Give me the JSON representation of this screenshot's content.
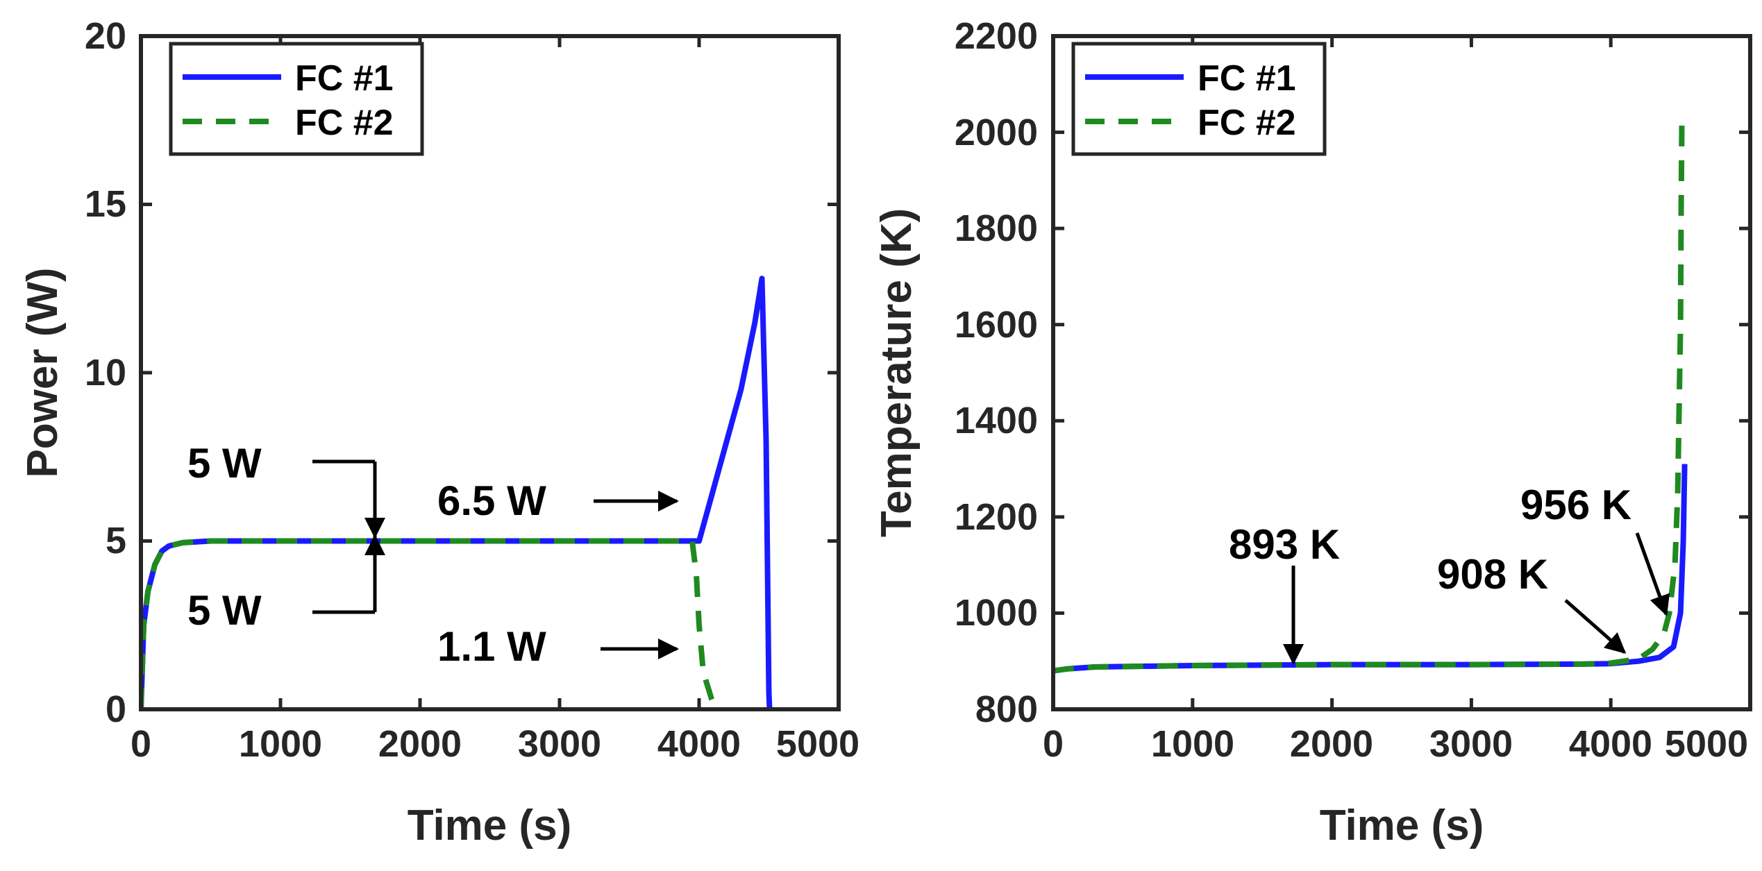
{
  "chart_data": [
    {
      "type": "line",
      "xlabel": "Time (s)",
      "ylabel": "Power (W)",
      "xlim": [
        0,
        5000
      ],
      "ylim": [
        0,
        20
      ],
      "xticks": [
        "0",
        "1000",
        "2000",
        "3000",
        "4000",
        "5000"
      ],
      "yticks": [
        "0",
        "5",
        "10",
        "15",
        "20"
      ],
      "legend": {
        "placement": "top-left",
        "entries": [
          "FC #1",
          "FC #2"
        ]
      },
      "series": [
        {
          "name": "FC #1",
          "color": "#1a1aff",
          "style": "solid",
          "x": [
            0,
            20,
            50,
            100,
            150,
            200,
            300,
            500,
            1000,
            2000,
            3000,
            3950,
            4000,
            4100,
            4200,
            4300,
            4400,
            4450,
            4480,
            4500,
            4505
          ],
          "y": [
            0,
            2.5,
            3.5,
            4.3,
            4.7,
            4.85,
            4.95,
            5.0,
            5.0,
            5.0,
            5.0,
            5.0,
            5.0,
            6.5,
            8.0,
            9.5,
            11.5,
            12.8,
            8.0,
            0.5,
            0
          ]
        },
        {
          "name": "FC #2",
          "color": "#1f8a1f",
          "style": "dashed",
          "x": [
            0,
            20,
            50,
            100,
            150,
            200,
            300,
            500,
            1000,
            2000,
            3000,
            3950,
            3980,
            4000,
            4030,
            4060,
            4090,
            4110
          ],
          "y": [
            0,
            2.5,
            3.5,
            4.3,
            4.7,
            4.85,
            4.95,
            5.0,
            5.0,
            5.0,
            5.0,
            5.0,
            4.0,
            2.5,
            1.1,
            0.7,
            0.3,
            0.1
          ]
        }
      ],
      "annotations": [
        {
          "text": "5 W",
          "x": 1700,
          "y": 5
        },
        {
          "text": "5 W",
          "x": 1700,
          "y": 5
        },
        {
          "text": "6.5 W",
          "x": 4000,
          "y": 6.5
        },
        {
          "text": "1.1 W",
          "x": 4000,
          "y": 1.1
        }
      ]
    },
    {
      "type": "line",
      "xlabel": "Time (s)",
      "ylabel": "Temperature (K)",
      "xlim": [
        0,
        5000
      ],
      "ylim": [
        800,
        2200
      ],
      "xticks": [
        "0",
        "1000",
        "2000",
        "3000",
        "4000",
        "5000"
      ],
      "yticks": [
        "800",
        "1000",
        "1200",
        "1400",
        "1600",
        "1800",
        "2000",
        "2200"
      ],
      "legend": {
        "placement": "top-left",
        "entries": [
          "FC #1",
          "FC #2"
        ]
      },
      "series": [
        {
          "name": "FC #1",
          "color": "#1a1aff",
          "style": "solid",
          "x": [
            0,
            100,
            300,
            1000,
            2000,
            3000,
            3800,
            4000,
            4200,
            4350,
            4450,
            4500,
            4520,
            4530
          ],
          "y": [
            880,
            884,
            888,
            891,
            893,
            893,
            894,
            895,
            900,
            908,
            930,
            1000,
            1150,
            1310
          ]
        },
        {
          "name": "FC #2",
          "color": "#1f8a1f",
          "style": "dashed",
          "x": [
            0,
            100,
            300,
            1000,
            2000,
            3000,
            3800,
            4000,
            4200,
            4300,
            4380,
            4420,
            4460,
            4480,
            4500,
            4505,
            4510
          ],
          "y": [
            880,
            884,
            888,
            891,
            893,
            893,
            894,
            896,
            905,
            925,
            956,
            1000,
            1100,
            1250,
            1600,
            1850,
            2030
          ]
        }
      ],
      "annotations": [
        {
          "text": "893 K",
          "x": 1800,
          "y": 893
        },
        {
          "text": "956 K",
          "x": 4380,
          "y": 956
        },
        {
          "text": "908 K",
          "x": 4350,
          "y": 908
        }
      ]
    }
  ]
}
